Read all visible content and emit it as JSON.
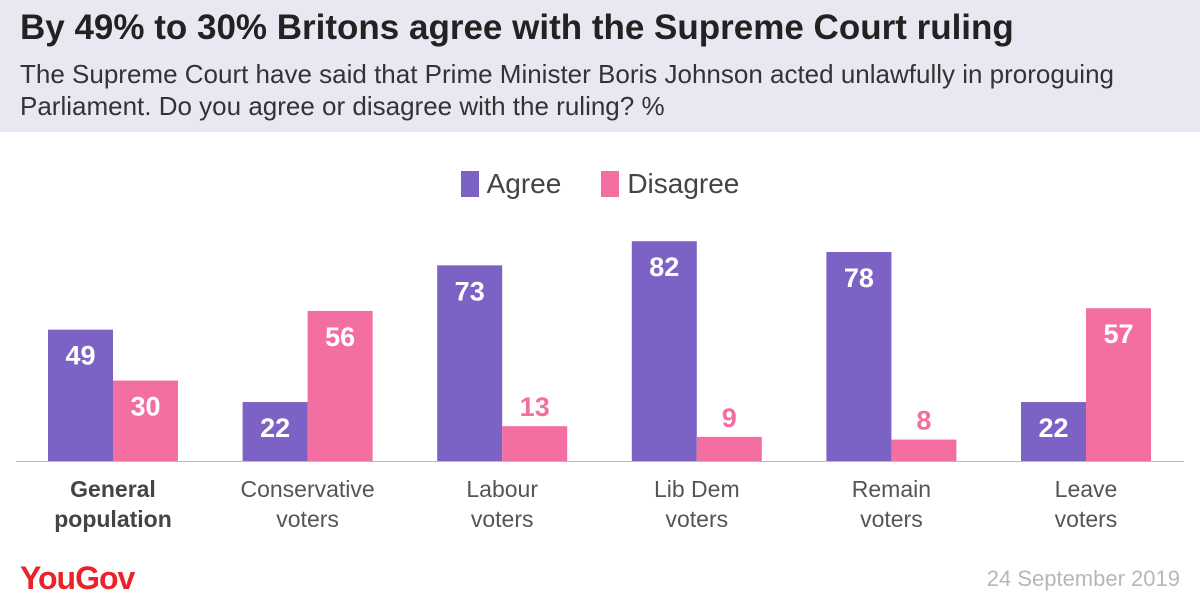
{
  "header": {
    "title": "By 49% to 30% Britons agree with the Supreme Court ruling",
    "subtitle": "The Supreme Court have said that Prime Minister Boris Johnson acted unlawfully in proroguing Parliament. Do you agree or disagree with the ruling? %"
  },
  "chart_data": {
    "type": "bar",
    "categories": [
      [
        "General",
        "population"
      ],
      [
        "Conservative",
        "voters"
      ],
      [
        "Labour",
        "voters"
      ],
      [
        "Lib Dem",
        "voters"
      ],
      [
        "Remain",
        "voters"
      ],
      [
        "Leave",
        "voters"
      ]
    ],
    "bold_category_index": 0,
    "series": [
      {
        "name": "Agree",
        "color": "#7b62c4",
        "values": [
          49,
          22,
          73,
          82,
          78,
          22
        ]
      },
      {
        "name": "Disagree",
        "color": "#f46fa1",
        "values": [
          30,
          56,
          13,
          9,
          8,
          57
        ]
      }
    ],
    "ylim": [
      0,
      90
    ],
    "grid": false,
    "legend_position": "top-center",
    "title": "",
    "xlabel": "",
    "ylabel": ""
  },
  "footer": {
    "logo": "YouGov",
    "date": "24 September 2019"
  }
}
